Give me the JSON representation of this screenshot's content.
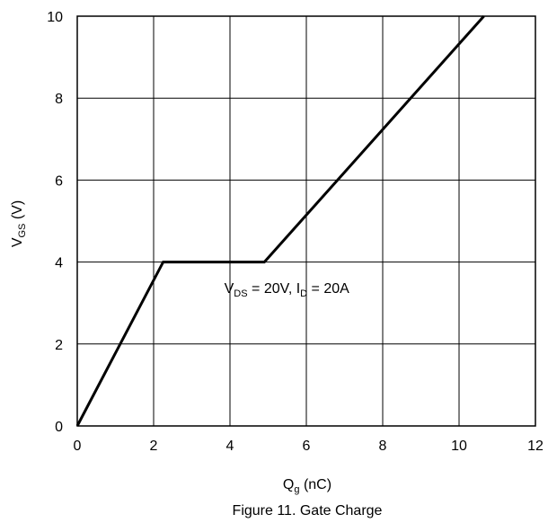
{
  "chart_data": {
    "type": "line",
    "title": "",
    "xlabel": {
      "main": "Q",
      "sub": "g",
      "suffix": " (nC)"
    },
    "ylabel": {
      "main": "V",
      "sub": "GS",
      "suffix": " (V)"
    },
    "xlim": [
      0,
      12
    ],
    "ylim": [
      0,
      10
    ],
    "xticks": [
      0,
      2,
      4,
      6,
      8,
      10,
      12
    ],
    "yticks": [
      0,
      2,
      4,
      6,
      8,
      10
    ],
    "x_tick_labels": [
      "0",
      "2",
      "4",
      "6",
      "8",
      "10",
      "12"
    ],
    "y_tick_labels": [
      "0",
      "2",
      "4",
      "6",
      "8",
      "10"
    ],
    "grid": true,
    "series": [
      {
        "x": [
          0,
          2.25,
          4.9,
          10.65
        ],
        "y": [
          0,
          4,
          4,
          10
        ],
        "color": "#000000"
      }
    ],
    "annotation": {
      "parts": [
        {
          "text": "V",
          "sub": false
        },
        {
          "text": "DS",
          "sub": true
        },
        {
          "text": " = 20V, I",
          "sub": false
        },
        {
          "text": "D",
          "sub": true
        },
        {
          "text": " = 20A",
          "sub": false
        }
      ],
      "at": {
        "x": 3.85,
        "y": 3.2
      }
    },
    "caption": "Figure 11. Gate Charge"
  }
}
